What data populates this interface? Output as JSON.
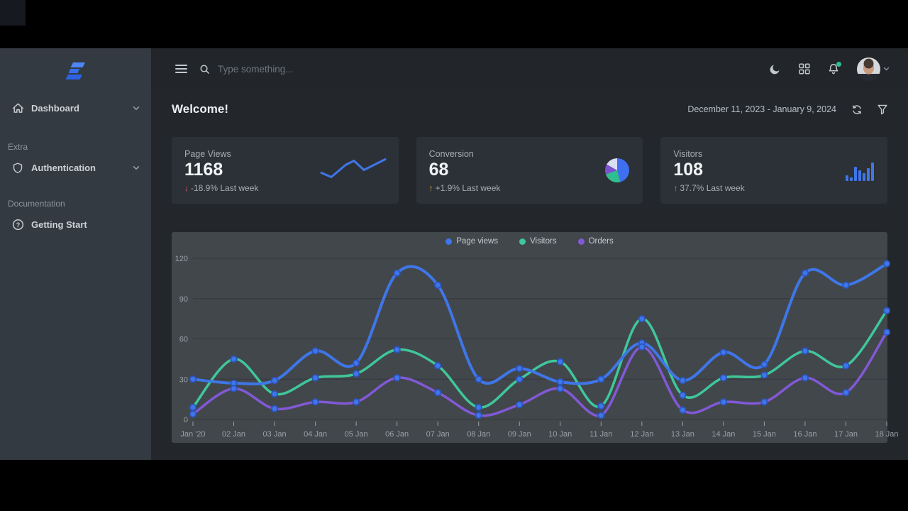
{
  "sidebar": {
    "sections": [
      {
        "label": "",
        "items": [
          {
            "label": "Dashboard",
            "icon": "home-icon",
            "has_chevron": true
          }
        ]
      },
      {
        "label": "Extra",
        "items": [
          {
            "label": "Authentication",
            "icon": "shield-icon",
            "has_chevron": true
          }
        ]
      },
      {
        "label": "Documentation",
        "items": [
          {
            "label": "Getting Start",
            "icon": "help-circle-icon",
            "has_chevron": false
          }
        ]
      }
    ]
  },
  "topbar": {
    "search_placeholder": "Type something...",
    "icons": [
      "menu-icon",
      "search-icon",
      "moon-icon",
      "apps-grid-icon",
      "bell-icon",
      "avatar",
      "chevron-down-icon"
    ],
    "notification_dot_color": "#2fbf8f"
  },
  "header": {
    "title": "Welcome!",
    "date_range": "December 11, 2023 - January 9, 2024",
    "icons": [
      "refresh-icon",
      "filter-icon"
    ]
  },
  "stats": [
    {
      "label": "Page Views",
      "value": "1168",
      "arrow": "↓",
      "delta": "-18.9% Last week",
      "spark": [
        [
          0,
          22
        ],
        [
          14,
          28
        ],
        [
          34,
          11
        ],
        [
          46,
          5
        ],
        [
          60,
          18
        ],
        [
          90,
          3
        ]
      ],
      "spark_color": "#3f76e8"
    },
    {
      "label": "Conversion",
      "value": "68",
      "arrow": "↑",
      "delta": "+1.9% Last week",
      "pie": [
        {
          "color": "#3e6ff0",
          "to": 165
        },
        {
          "color": "#2fbf8f",
          "to": 250
        },
        {
          "color": "#7b52cc",
          "to": 300
        },
        {
          "color": "#d9def2",
          "to": 360
        }
      ]
    },
    {
      "label": "Visitors",
      "value": "108",
      "arrow": "↑",
      "delta": "37.7% Last week",
      "bars": [
        8,
        5,
        20,
        15,
        11,
        18,
        26
      ],
      "bars_color": "#3f76e8"
    }
  ],
  "chart_data": {
    "type": "line",
    "title": "",
    "categories": [
      "Jan '20",
      "02 Jan",
      "03 Jan",
      "04 Jan",
      "05 Jan",
      "06 Jan",
      "07 Jan",
      "08 Jan",
      "09 Jan",
      "10 Jan",
      "11 Jan",
      "12 Jan",
      "13 Jan",
      "14 Jan",
      "15 Jan",
      "16 Jan",
      "17 Jan",
      "18 Jan"
    ],
    "series": [
      {
        "name": "Page views",
        "color": "#3f76e8",
        "values": [
          30,
          27,
          29,
          51,
          42,
          109,
          100,
          30,
          38,
          28,
          30,
          57,
          29,
          50,
          41,
          109,
          100,
          116
        ]
      },
      {
        "name": "Visitors",
        "color": "#3fc79a",
        "values": [
          9,
          45,
          19,
          31,
          34,
          52,
          40,
          9,
          30,
          43,
          10,
          75,
          18,
          31,
          33,
          51,
          40,
          81
        ]
      },
      {
        "name": "Orders",
        "color": "#8159d6",
        "values": [
          4,
          23,
          8,
          13,
          13,
          31,
          20,
          3,
          11,
          23,
          3,
          54,
          7,
          13,
          13,
          31,
          20,
          65
        ]
      }
    ],
    "yticks": [
      0,
      30,
      60,
      90,
      120
    ],
    "ylim": [
      0,
      120
    ],
    "xlabel": "",
    "ylabel": "",
    "grid": "horizontal",
    "legend_position": "top",
    "marker_color": "#3f76e8",
    "marker_stroke": "#2b55c0"
  },
  "colors": {
    "page_bg": "#23272c",
    "topbar_bg": "#22262a",
    "sidebar_bg": "#333a41",
    "card_bg": "#2c3137",
    "panel_bg": "#42474c",
    "gridline": "#35393d",
    "axis_text": "#9aa0a6",
    "accent_blue": "#3f76e8",
    "accent_green": "#3fc79a",
    "accent_purple": "#8159d6",
    "delta_down": "#e05560",
    "delta_up_orange": "#f0a93b",
    "delta_up_green": "#35c38f",
    "logo_blue": "#2e6bf0"
  }
}
